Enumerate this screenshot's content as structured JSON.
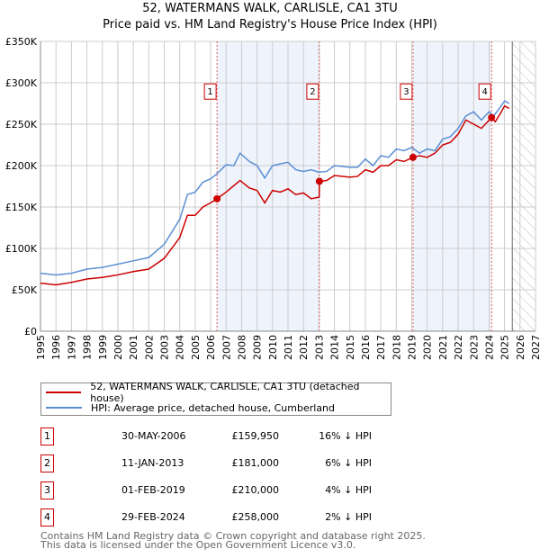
{
  "chart_data": {
    "type": "line",
    "title": "52, WATERMANS WALK, CARLISLE, CA1 3TU",
    "subtitle": "Price paid vs. HM Land Registry's House Price Index (HPI)",
    "xlim": [
      1995,
      2027
    ],
    "ylim": [
      0,
      350000
    ],
    "x_ticks": [
      "1995",
      "1996",
      "1997",
      "1998",
      "1999",
      "2000",
      "2001",
      "2002",
      "2003",
      "2004",
      "2005",
      "2006",
      "2007",
      "2008",
      "2009",
      "2010",
      "2011",
      "2012",
      "2013",
      "2014",
      "2015",
      "2016",
      "2017",
      "2018",
      "2019",
      "2020",
      "2021",
      "2022",
      "2023",
      "2024",
      "2025",
      "2026",
      "2027"
    ],
    "y_ticks": [
      {
        "v": 0,
        "label": "£0"
      },
      {
        "v": 50000,
        "label": "£50K"
      },
      {
        "v": 100000,
        "label": "£100K"
      },
      {
        "v": 150000,
        "label": "£150K"
      },
      {
        "v": 200000,
        "label": "£200K"
      },
      {
        "v": 250000,
        "label": "£250K"
      },
      {
        "v": 300000,
        "label": "£300K"
      },
      {
        "v": 350000,
        "label": "£350K"
      }
    ],
    "grid": true,
    "forecast_hatch_from": 2025.5,
    "shaded_ranges": [
      [
        2006.41,
        2013.03
      ],
      [
        2019.08,
        2024.16
      ]
    ],
    "series": [
      {
        "name": "52, WATERMANS WALK, CARLISLE, CA1 3TU (detached house)",
        "color": "#cc0000",
        "x": [
          1995,
          1996,
          1997,
          1998,
          1999,
          2000,
          2001,
          2002,
          2003,
          2004,
          2004.5,
          2005,
          2005.5,
          2006,
          2006.41,
          2007,
          2007.9,
          2008.5,
          2009,
          2009.5,
          2010,
          2010.5,
          2011,
          2011.5,
          2012,
          2012.5,
          2013.02,
          2013.03,
          2013.5,
          2014,
          2015,
          2015.5,
          2016,
          2016.5,
          2017,
          2017.5,
          2018,
          2018.5,
          2019.08,
          2019.5,
          2020,
          2020.5,
          2021,
          2021.5,
          2022,
          2022.5,
          2023,
          2023.5,
          2024.16,
          2024.4,
          2024.7,
          2025,
          2025.3
        ],
        "y": [
          58000,
          56000,
          59000,
          63000,
          65000,
          68000,
          72000,
          75000,
          88000,
          113000,
          140000,
          140000,
          150000,
          155000,
          159950,
          168000,
          182000,
          173000,
          170000,
          155000,
          170000,
          168000,
          172000,
          165000,
          167000,
          160000,
          162000,
          181000,
          182000,
          188000,
          186000,
          187000,
          195000,
          192000,
          200000,
          200000,
          207000,
          205000,
          210000,
          212000,
          210000,
          215000,
          225000,
          228000,
          238000,
          255000,
          250000,
          245000,
          258000,
          253000,
          262000,
          272000,
          269000
        ]
      },
      {
        "name": "HPI: Average price, detached house, Cumberland",
        "color": "#5b8fd4",
        "x": [
          1995,
          1996,
          1997,
          1998,
          1999,
          2000,
          2001,
          2002,
          2003,
          2004,
          2004.5,
          2005,
          2005.5,
          2006,
          2006.4,
          2007,
          2007.5,
          2007.9,
          2008.5,
          2009,
          2009.5,
          2010,
          2010.5,
          2011,
          2011.5,
          2012,
          2012.5,
          2013,
          2013.5,
          2014,
          2015,
          2015.5,
          2016,
          2016.5,
          2017,
          2017.5,
          2018,
          2018.5,
          2019,
          2019.5,
          2020,
          2020.5,
          2021,
          2021.5,
          2022,
          2022.5,
          2023,
          2023.5,
          2024,
          2024.3,
          2024.7,
          2025,
          2025.3
        ],
        "y": [
          70000,
          68000,
          70000,
          75000,
          77000,
          81000,
          85000,
          89000,
          105000,
          135000,
          165000,
          168000,
          180000,
          184000,
          190000,
          201000,
          200000,
          215000,
          205000,
          200000,
          185000,
          200000,
          202000,
          204000,
          195000,
          193000,
          195000,
          192000,
          193000,
          200000,
          198000,
          198000,
          208000,
          200000,
          212000,
          210000,
          220000,
          218000,
          222000,
          215000,
          220000,
          218000,
          232000,
          235000,
          245000,
          260000,
          265000,
          255000,
          265000,
          260000,
          270000,
          278000,
          275000
        ]
      }
    ],
    "sales": [
      {
        "n": "1",
        "x": 2006.41,
        "y": 159950,
        "date": "30-MAY-2006",
        "price": "£159,950",
        "hpi": "16% ↓ HPI"
      },
      {
        "n": "2",
        "x": 2013.03,
        "y": 181000,
        "date": "11-JAN-2013",
        "price": "£181,000",
        "hpi": "6% ↓ HPI"
      },
      {
        "n": "3",
        "x": 2019.08,
        "y": 210000,
        "date": "01-FEB-2019",
        "price": "£210,000",
        "hpi": "4% ↓ HPI"
      },
      {
        "n": "4",
        "x": 2024.16,
        "y": 258000,
        "date": "29-FEB-2024",
        "price": "£258,000",
        "hpi": "2% ↓ HPI"
      }
    ]
  },
  "footer": {
    "line1": "Contains HM Land Registry data © Crown copyright and database right 2025.",
    "line2": "This data is licensed under the Open Government Licence v3.0."
  }
}
